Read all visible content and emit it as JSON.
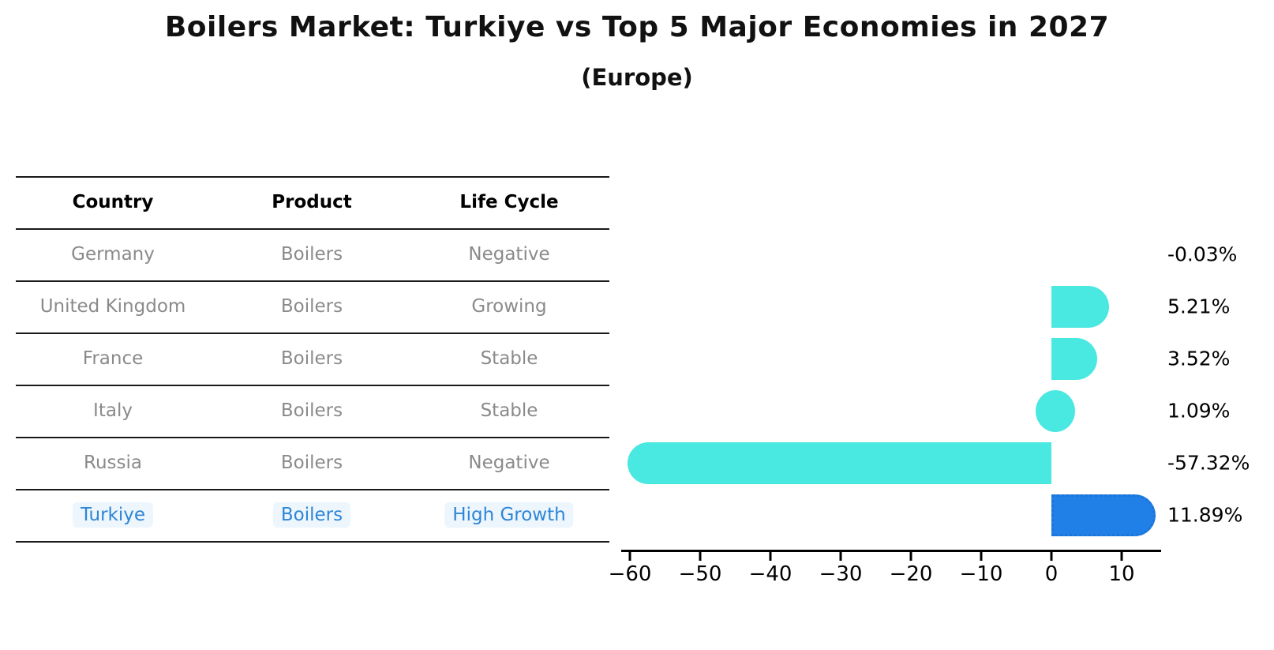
{
  "title": "Boilers Market: Turkiye vs Top 5 Major Economies in 2027",
  "subtitle": "(Europe)",
  "table": {
    "headers": [
      "Country",
      "Product",
      "Life Cycle"
    ],
    "rows": [
      {
        "country": "Germany",
        "product": "Boilers",
        "life_cycle": "Negative",
        "highlight": false
      },
      {
        "country": "United Kingdom",
        "product": "Boilers",
        "life_cycle": "Growing",
        "highlight": false
      },
      {
        "country": "France",
        "product": "Boilers",
        "life_cycle": "Stable",
        "highlight": false
      },
      {
        "country": "Italy",
        "product": "Boilers",
        "life_cycle": "Stable",
        "highlight": false
      },
      {
        "country": "Russia",
        "product": "Boilers",
        "life_cycle": "Negative",
        "highlight": false
      },
      {
        "country": "Turkiye",
        "product": "Boilers",
        "life_cycle": "High Growth",
        "highlight": true
      }
    ]
  },
  "chart_data": {
    "type": "bar",
    "orientation": "horizontal",
    "title": "Boilers Market: Turkiye vs Top 5 Major Economies in 2027",
    "subtitle": "(Europe)",
    "categories": [
      "Germany",
      "United Kingdom",
      "France",
      "Italy",
      "Russia",
      "Turkiye"
    ],
    "values": [
      -0.03,
      5.21,
      3.52,
      1.09,
      -57.32,
      11.89
    ],
    "value_labels": [
      "-0.03%",
      "5.21%",
      "3.52%",
      "1.09%",
      "-57.32%",
      "11.89%"
    ],
    "highlight_index": 5,
    "x_ticks": [
      -60,
      -50,
      -40,
      -30,
      -20,
      -10,
      0,
      10
    ],
    "x_tick_labels": [
      "−60",
      "−50",
      "−40",
      "−30",
      "−20",
      "−10",
      "0",
      "10"
    ],
    "xlim": [
      -61,
      15.5
    ],
    "grid": false,
    "legend": null,
    "xlabel": "",
    "ylabel": ""
  },
  "colors": {
    "bar_cyan": "#49E8E0",
    "bar_blue": "#2080E8",
    "bar_blue_border": "#1B74D6",
    "highlight_text": "#2E86D6",
    "highlight_bg": "#EDF5FD",
    "table_text": "#8A8A8A",
    "axis": "#000000"
  }
}
